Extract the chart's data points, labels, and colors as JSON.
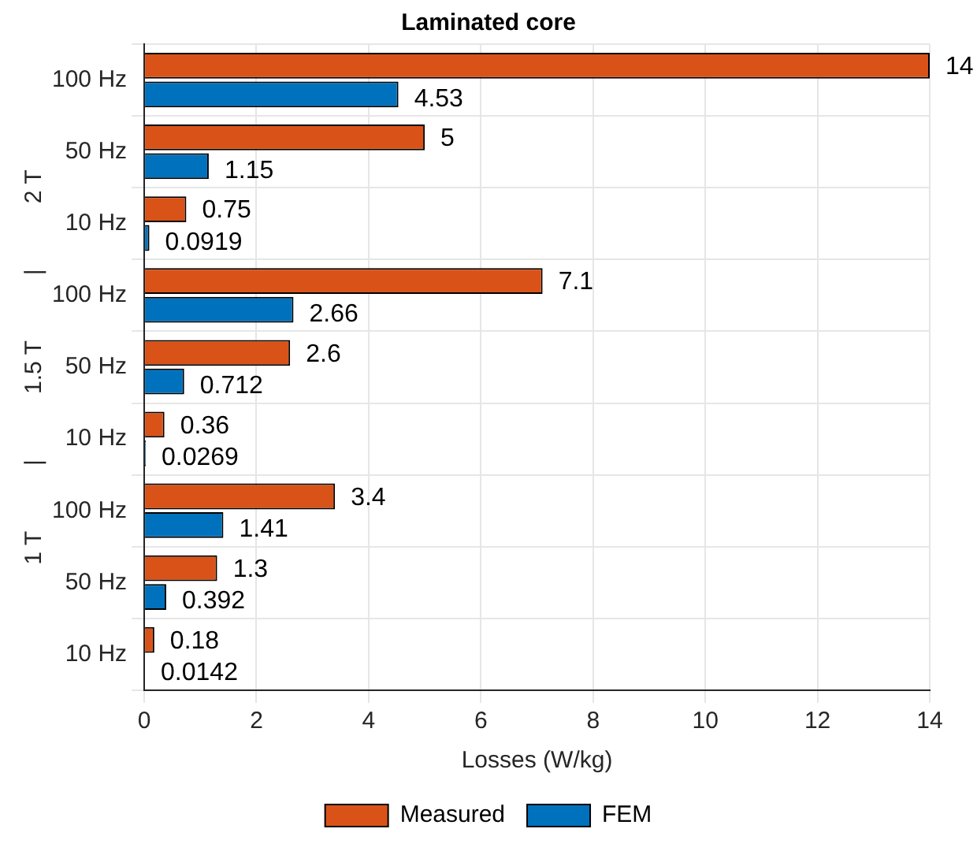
{
  "chart_data": {
    "type": "bar",
    "orientation": "horizontal",
    "title": "Laminated core",
    "xlabel": "Losses (W/kg)",
    "ylabel": "1 T          |          1.5 T          |          2 T",
    "categories": [
      "100 Hz",
      "50 Hz",
      "10 Hz",
      "100 Hz",
      "50 Hz",
      "10 Hz",
      "100 Hz",
      "50 Hz",
      "10 Hz"
    ],
    "series": [
      {
        "name": "FEM",
        "color": "#0072bd",
        "values": [
          4.53,
          1.15,
          0.0919,
          2.66,
          0.712,
          0.0269,
          1.41,
          0.392,
          0.0142
        ]
      },
      {
        "name": "Measured",
        "color": "#d95319",
        "values": [
          14,
          5,
          0.75,
          7.1,
          2.6,
          0.36,
          3.4,
          1.3,
          0.18
        ]
      }
    ],
    "xlim": [
      0,
      14
    ],
    "xticks": [
      0,
      2,
      4,
      6,
      8,
      10,
      12,
      14
    ],
    "grid": true,
    "legend": "bottom",
    "data_labels": true
  }
}
